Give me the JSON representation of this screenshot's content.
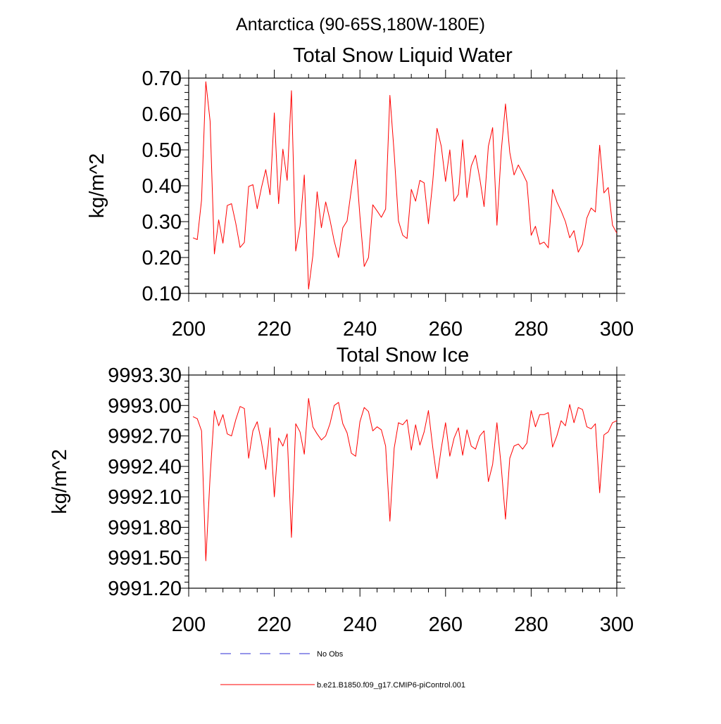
{
  "figure": {
    "title": "Antarctica (90-65S,180W-180E)"
  },
  "chart_data": [
    {
      "type": "line",
      "title": "Total Snow Liquid Water",
      "xlabel": "",
      "ylabel": "kg/m^2",
      "xlim": [
        200,
        300
      ],
      "ylim": [
        0.1,
        0.7
      ],
      "x_ticks": [
        "200",
        "220",
        "240",
        "260",
        "280",
        "300"
      ],
      "y_ticks": [
        "0.10",
        "0.20",
        "0.30",
        "0.40",
        "0.50",
        "0.60",
        "0.70"
      ],
      "grid": false,
      "series": [
        {
          "name": "b.e21.B1850.f09_g17.CMIP6-piControl.001",
          "color": "#ff0000",
          "x": [
            201,
            202,
            203,
            204,
            205,
            206,
            207,
            208,
            209,
            210,
            211,
            212,
            213,
            214,
            215,
            216,
            217,
            218,
            219,
            220,
            221,
            222,
            223,
            224,
            225,
            226,
            227,
            228,
            229,
            230,
            231,
            232,
            233,
            234,
            235,
            236,
            237,
            238,
            239,
            240,
            241,
            242,
            243,
            244,
            245,
            246,
            247,
            248,
            249,
            250,
            251,
            252,
            253,
            254,
            255,
            256,
            257,
            258,
            259,
            260,
            261,
            262,
            263,
            264,
            265,
            266,
            267,
            268,
            269,
            270,
            271,
            272,
            273,
            274,
            275,
            276,
            277,
            278,
            279,
            280,
            281,
            282,
            283,
            284,
            285,
            286,
            287,
            288,
            289,
            290,
            291,
            292,
            293,
            294,
            295,
            296,
            297,
            298,
            299,
            300
          ],
          "y": [
            0.255,
            0.25,
            0.36,
            0.69,
            0.58,
            0.21,
            0.305,
            0.24,
            0.345,
            0.35,
            0.295,
            0.228,
            0.242,
            0.398,
            0.403,
            0.336,
            0.395,
            0.445,
            0.375,
            0.603,
            0.35,
            0.502,
            0.415,
            0.665,
            0.218,
            0.287,
            0.43,
            0.112,
            0.205,
            0.383,
            0.283,
            0.355,
            0.305,
            0.245,
            0.2,
            0.283,
            0.302,
            0.39,
            0.473,
            0.315,
            0.175,
            0.2,
            0.347,
            0.33,
            0.312,
            0.335,
            0.652,
            0.49,
            0.302,
            0.262,
            0.253,
            0.39,
            0.357,
            0.415,
            0.408,
            0.294,
            0.41,
            0.56,
            0.51,
            0.412,
            0.5,
            0.357,
            0.376,
            0.528,
            0.367,
            0.455,
            0.485,
            0.42,
            0.342,
            0.51,
            0.562,
            0.29,
            0.495,
            0.628,
            0.493,
            0.43,
            0.458,
            0.435,
            0.41,
            0.262,
            0.287,
            0.237,
            0.243,
            0.227,
            0.39,
            0.355,
            0.33,
            0.3,
            0.255,
            0.275,
            0.215,
            0.237,
            0.31,
            0.338,
            0.327,
            0.513,
            0.38,
            0.395,
            0.29,
            0.268
          ]
        }
      ]
    },
    {
      "type": "line",
      "title": "Total Snow Ice",
      "xlabel": "",
      "ylabel": "kg/m^2",
      "xlim": [
        200,
        300
      ],
      "ylim": [
        9991.2,
        9993.3
      ],
      "x_ticks": [
        "200",
        "220",
        "240",
        "260",
        "280",
        "300"
      ],
      "y_ticks": [
        "9991.20",
        "9991.50",
        "9991.80",
        "9992.10",
        "9992.40",
        "9992.70",
        "9993.00",
        "9993.30"
      ],
      "grid": false,
      "series": [
        {
          "name": "b.e21.B1850.f09_g17.CMIP6-piControl.001",
          "color": "#ff0000",
          "x": [
            201,
            202,
            203,
            204,
            205,
            206,
            207,
            208,
            209,
            210,
            211,
            212,
            213,
            214,
            215,
            216,
            217,
            218,
            219,
            220,
            221,
            222,
            223,
            224,
            225,
            226,
            227,
            228,
            229,
            230,
            231,
            232,
            233,
            234,
            235,
            236,
            237,
            238,
            239,
            240,
            241,
            242,
            243,
            244,
            245,
            246,
            247,
            248,
            249,
            250,
            251,
            252,
            253,
            254,
            255,
            256,
            257,
            258,
            259,
            260,
            261,
            262,
            263,
            264,
            265,
            266,
            267,
            268,
            269,
            270,
            271,
            272,
            273,
            274,
            275,
            276,
            277,
            278,
            279,
            280,
            281,
            282,
            283,
            284,
            285,
            286,
            287,
            288,
            289,
            290,
            291,
            292,
            293,
            294,
            295,
            296,
            297,
            298,
            299,
            300
          ],
          "y": [
            9992.89,
            9992.87,
            9992.75,
            9991.47,
            9992.3,
            9992.95,
            9992.8,
            9992.91,
            9992.72,
            9992.7,
            9992.86,
            9992.99,
            9992.97,
            9992.48,
            9992.75,
            9992.84,
            9992.64,
            9992.37,
            9992.78,
            9992.1,
            9992.68,
            9992.6,
            9992.72,
            9991.7,
            9992.82,
            9992.74,
            9992.52,
            9993.07,
            9992.79,
            9992.72,
            9992.66,
            9992.7,
            9992.82,
            9993.0,
            9993.03,
            9992.82,
            9992.73,
            9992.53,
            9992.5,
            9992.84,
            9992.98,
            9992.94,
            9992.75,
            9992.79,
            9992.76,
            9992.6,
            9991.86,
            9992.58,
            9992.83,
            9992.81,
            9992.86,
            9992.56,
            9992.81,
            9992.61,
            9992.74,
            9992.95,
            9992.59,
            9992.28,
            9992.58,
            9992.83,
            9992.5,
            9992.68,
            9992.78,
            9992.51,
            9992.76,
            9992.6,
            9992.57,
            9992.7,
            9992.75,
            9992.25,
            9992.42,
            9992.83,
            9992.4,
            9991.88,
            9992.48,
            9992.6,
            9992.62,
            9992.57,
            9992.63,
            9992.95,
            9992.79,
            9992.91,
            9992.91,
            9992.93,
            9992.59,
            9992.7,
            9992.85,
            9992.8,
            9993.01,
            9992.83,
            9992.98,
            9992.96,
            9992.79,
            9992.77,
            9992.82,
            9992.14,
            9992.71,
            9992.74,
            9992.83,
            9992.85
          ]
        }
      ]
    }
  ],
  "legend": {
    "items": [
      {
        "label": "No Obs",
        "color": "#2b2bd4",
        "dash": "dashed"
      },
      {
        "label": "b.e21.B1850.f09_g17.CMIP6-piControl.001",
        "color": "#ff0000",
        "dash": "solid"
      }
    ]
  }
}
